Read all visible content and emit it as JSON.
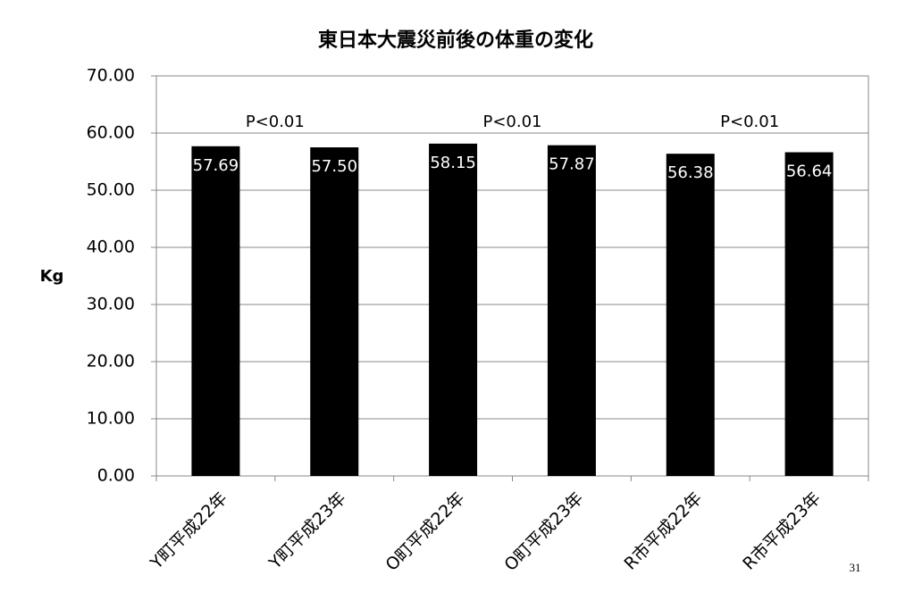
{
  "chart_data": {
    "type": "bar",
    "title": "東日本大震災前後の体重の変化",
    "y_label": "Kg",
    "categories": [
      "Y町平成22年",
      "Y町平成23年",
      "O町平成22年",
      "O町平成23年",
      "R市平成22年",
      "R市平成23年"
    ],
    "values": [
      57.69,
      57.5,
      58.15,
      57.87,
      56.38,
      56.64
    ],
    "value_labels": [
      "57.69",
      "57.50",
      "58.15",
      "57.87",
      "56.38",
      "56.64"
    ],
    "color": "#000000",
    "ylim": [
      0,
      70
    ],
    "yticks": [
      {
        "value": 0,
        "label": "0.00"
      },
      {
        "value": 10,
        "label": "10.00"
      },
      {
        "value": 20,
        "label": "20.00"
      },
      {
        "value": 30,
        "label": "30.00"
      },
      {
        "value": 40,
        "label": "40.00"
      },
      {
        "value": 50,
        "label": "50.00"
      },
      {
        "value": 60,
        "label": "60.00"
      },
      {
        "value": 70,
        "label": "70.00"
      }
    ],
    "grid": true,
    "annotations": [
      "P<0.01",
      "P<0.01",
      "P<0.01"
    ],
    "page_number": "31"
  }
}
